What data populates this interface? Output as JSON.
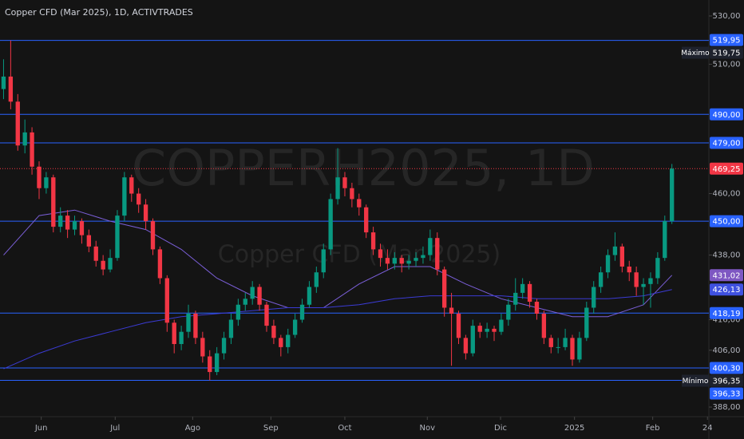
{
  "chart_data": {
    "type": "candlestick",
    "title": "Copper CFD (Mar 2025), 1D, ACTIVTRADES",
    "watermark": "COPPERH2025, 1D",
    "watermark_subtitle": "Copper CFD (Mar 2025)",
    "log_scale": true,
    "up_color": "#089981",
    "down_color": "#f23645",
    "ylim": [
      388,
      530
    ],
    "yticks": [
      {
        "value": 530,
        "label": "530,00"
      },
      {
        "value": 510,
        "label": "510,00"
      },
      {
        "value": 460,
        "label": "460,00"
      },
      {
        "value": 438,
        "label": "438,00"
      },
      {
        "value": 416,
        "label": "416,00"
      },
      {
        "value": 406,
        "label": "406,00"
      },
      {
        "value": 388,
        "label": "388,00"
      }
    ],
    "xlim": [
      -0.5,
      99.2
    ],
    "xticks": [
      {
        "value": 5.3,
        "label": "Jun"
      },
      {
        "value": 15.7,
        "label": "Jul"
      },
      {
        "value": 26.6,
        "label": "Ago"
      },
      {
        "value": 37.6,
        "label": "Sep"
      },
      {
        "value": 48,
        "label": "Oct"
      },
      {
        "value": 59.6,
        "label": "Nov"
      },
      {
        "value": 69.9,
        "label": "Dic"
      },
      {
        "value": 80.3,
        "label": "2025"
      },
      {
        "value": 91.3,
        "label": "Feb"
      },
      {
        "value": 99,
        "label": "24"
      }
    ],
    "candles": [
      [
        500,
        512,
        496,
        505
      ],
      [
        505,
        519.75,
        492,
        495
      ],
      [
        495,
        498,
        476,
        478
      ],
      [
        478,
        488,
        475,
        483
      ],
      [
        483,
        485,
        467,
        470
      ],
      [
        470,
        472,
        458,
        462
      ],
      [
        462,
        468,
        460,
        466
      ],
      [
        466,
        467,
        446,
        448
      ],
      [
        448,
        455,
        446,
        452
      ],
      [
        452,
        454,
        444,
        447
      ],
      [
        447,
        452,
        445,
        450
      ],
      [
        450,
        451,
        442,
        445
      ],
      [
        445,
        447,
        439,
        441
      ],
      [
        441,
        443,
        434,
        436
      ],
      [
        436,
        438,
        431,
        433
      ],
      [
        433,
        440,
        432,
        437
      ],
      [
        437,
        454,
        436,
        452
      ],
      [
        452,
        468,
        450,
        466
      ],
      [
        466,
        467,
        457,
        460
      ],
      [
        460,
        462,
        453,
        456
      ],
      [
        456,
        458,
        447,
        450
      ],
      [
        450,
        451,
        438,
        440
      ],
      [
        440,
        441,
        428,
        430
      ],
      [
        430,
        431,
        412,
        415
      ],
      [
        415,
        416,
        405,
        408
      ],
      [
        408,
        414,
        406,
        412
      ],
      [
        412,
        421,
        410,
        418
      ],
      [
        418,
        419,
        408,
        410
      ],
      [
        410,
        412,
        402,
        404
      ],
      [
        404,
        406,
        396.35,
        399
      ],
      [
        399,
        407,
        398,
        405
      ],
      [
        405,
        412,
        403,
        410
      ],
      [
        410,
        418,
        408,
        416
      ],
      [
        416,
        423,
        414,
        421
      ],
      [
        421,
        425,
        419,
        423
      ],
      [
        423,
        429,
        421,
        427
      ],
      [
        427,
        428,
        419,
        421
      ],
      [
        421,
        422,
        412,
        414
      ],
      [
        414,
        416,
        408,
        410
      ],
      [
        410,
        411,
        404,
        407
      ],
      [
        407,
        413,
        405,
        411
      ],
      [
        411,
        418,
        410,
        416
      ],
      [
        416,
        423,
        415,
        421
      ],
      [
        421,
        429,
        420,
        427
      ],
      [
        427,
        434,
        425,
        432
      ],
      [
        432,
        442,
        430,
        440
      ],
      [
        440,
        460,
        438,
        458
      ],
      [
        458,
        477,
        456,
        466
      ],
      [
        466,
        468,
        459,
        462
      ],
      [
        462,
        464,
        455,
        458
      ],
      [
        458,
        460,
        452,
        455
      ],
      [
        455,
        456,
        444,
        446
      ],
      [
        446,
        448,
        438,
        440
      ],
      [
        440,
        442,
        434,
        437
      ],
      [
        437,
        440,
        433,
        435
      ],
      [
        435,
        439,
        433,
        437
      ],
      [
        437,
        438,
        432,
        435
      ],
      [
        435,
        438,
        433,
        436
      ],
      [
        436,
        439,
        434,
        437
      ],
      [
        437,
        441,
        435,
        438
      ],
      [
        438,
        447,
        436,
        444
      ],
      [
        444,
        446,
        431,
        433
      ],
      [
        433,
        434,
        417,
        420
      ],
      [
        420,
        425,
        401,
        418
      ],
      [
        418,
        419,
        408,
        410
      ],
      [
        410,
        411,
        403,
        405
      ],
      [
        405,
        416,
        404,
        414
      ],
      [
        414,
        415,
        410,
        412
      ],
      [
        412,
        415,
        410,
        413
      ],
      [
        413,
        414,
        409,
        412
      ],
      [
        412,
        418,
        411,
        416
      ],
      [
        416,
        423,
        414,
        421
      ],
      [
        421,
        430,
        419,
        425
      ],
      [
        425,
        430,
        423,
        428
      ],
      [
        428,
        429,
        420,
        422
      ],
      [
        422,
        423,
        416,
        418
      ],
      [
        418,
        419,
        408,
        410
      ],
      [
        410,
        411,
        405,
        407
      ],
      [
        407,
        410,
        405,
        407
      ],
      [
        407,
        413,
        406,
        410
      ],
      [
        410,
        411,
        401,
        403
      ],
      [
        403,
        412,
        402,
        410
      ],
      [
        410,
        422,
        409,
        420
      ],
      [
        420,
        429,
        418,
        427
      ],
      [
        427,
        434,
        425,
        432
      ],
      [
        432,
        440,
        430,
        438
      ],
      [
        438,
        446,
        436,
        441
      ],
      [
        441,
        442,
        432,
        434
      ],
      [
        434,
        436,
        429,
        432
      ],
      [
        432,
        434,
        424,
        427
      ],
      [
        427,
        430,
        421,
        428
      ],
      [
        428,
        432,
        420,
        430
      ],
      [
        430,
        439,
        428,
        437
      ],
      [
        437,
        452,
        436,
        450
      ],
      [
        450,
        471,
        449,
        469.25
      ]
    ],
    "series": [
      {
        "color": "#7b5fd9",
        "end_label": "431,02",
        "label_color": "#7e57c2",
        "x": [
          0,
          5,
          10,
          15,
          20,
          25,
          30,
          35,
          40,
          45,
          50,
          55,
          60,
          65,
          70,
          75,
          80,
          85,
          90,
          94
        ],
        "values": [
          438,
          452,
          454,
          450,
          447,
          440,
          430,
          424,
          420,
          420,
          428,
          434,
          434,
          428,
          423,
          420,
          417,
          417,
          421,
          431.02
        ]
      },
      {
        "color": "#3b3bd4",
        "end_label": "426,13",
        "label_color": "#3f51e0",
        "x": [
          0,
          5,
          10,
          15,
          20,
          25,
          30,
          35,
          40,
          45,
          50,
          55,
          60,
          65,
          70,
          75,
          80,
          85,
          90,
          94
        ],
        "values": [
          400,
          405,
          409,
          412,
          415,
          417,
          418,
          419,
          420,
          420,
          421,
          423,
          424,
          424,
          424,
          423,
          423,
          423,
          424,
          426.13
        ]
      }
    ],
    "levels": [
      {
        "value": 490,
        "label": "490,00"
      },
      {
        "value": 479,
        "label": "479,00"
      },
      {
        "value": 450,
        "label": "450,00"
      },
      {
        "value": 418.19,
        "label": "418,19"
      },
      {
        "value": 400.3,
        "label": "400,30"
      }
    ],
    "level_color": "#2962ff",
    "max": {
      "value": 519.75,
      "label": "519,75",
      "tag": "Máximo"
    },
    "min": {
      "value": 396.35,
      "label": "396,35",
      "tag": "Mínimo"
    },
    "price_tags": [
      {
        "value": 519.95,
        "label": "519,95"
      },
      {
        "value": 396.33,
        "label": "396,33"
      }
    ],
    "last_price": {
      "value": 469.25,
      "label": "469,25",
      "color": "#f23645"
    }
  }
}
